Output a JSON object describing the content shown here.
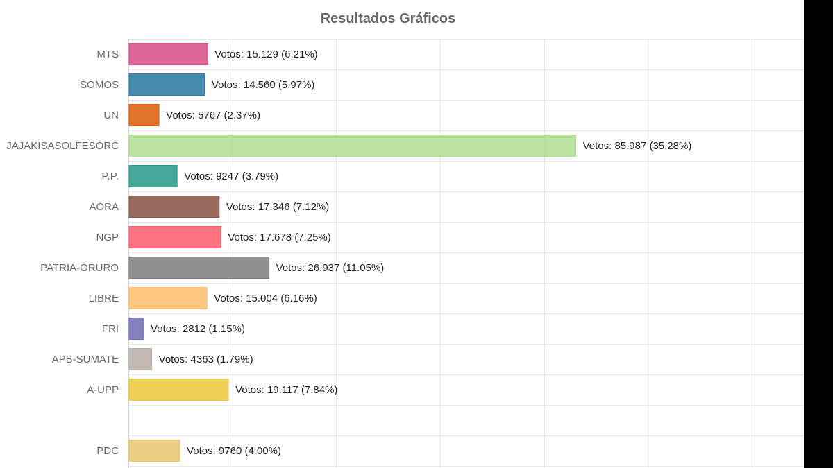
{
  "chart_data": {
    "type": "bar",
    "orientation": "horizontal",
    "title": "Resultados Gráficos",
    "xlabel": "",
    "ylabel": "",
    "grid": true,
    "legend": "none",
    "xlim": [
      0,
      130000
    ],
    "categories": [
      "MTS",
      "SOMOS",
      "UN",
      "JAJAKISASOLFESORC",
      "P.P.",
      "AORA",
      "NGP",
      "PATRIA-ORURO",
      "LIBRE",
      "FRI",
      "APB-SUMATE",
      "A-UPP",
      "",
      "PDC"
    ],
    "values": [
      15129,
      14560,
      5767,
      85987,
      9247,
      17346,
      17678,
      26937,
      15004,
      2812,
      4363,
      19117,
      null,
      9760
    ],
    "data_labels": [
      "Votos: 15.129 (6.21%)",
      "Votos: 14.560 (5.97%)",
      "Votos: 5767 (2.37%)",
      "Votos: 85.987 (35.28%)",
      "Votos: 9247 (3.79%)",
      "Votos: 17.346 (7.12%)",
      "Votos: 17.678 (7.25%)",
      "Votos: 26.937 (11.05%)",
      "Votos: 15.004 (6.16%)",
      "Votos: 2812 (1.15%)",
      "Votos: 4363 (1.79%)",
      "Votos: 19.117 (7.84%)",
      "",
      "Votos: 9760 (4.00%)"
    ],
    "colors": [
      "#d6508a",
      "#2a7ba3",
      "#dd6010",
      "#b3df8f",
      "#2c9c8c",
      "#8a5548",
      "#ff5f6d",
      "#7f7f7f",
      "#ffbe70",
      "#7470b8",
      "#bcb1ab",
      "#ecc83e",
      "#ffffff",
      "#e8c56f"
    ]
  }
}
